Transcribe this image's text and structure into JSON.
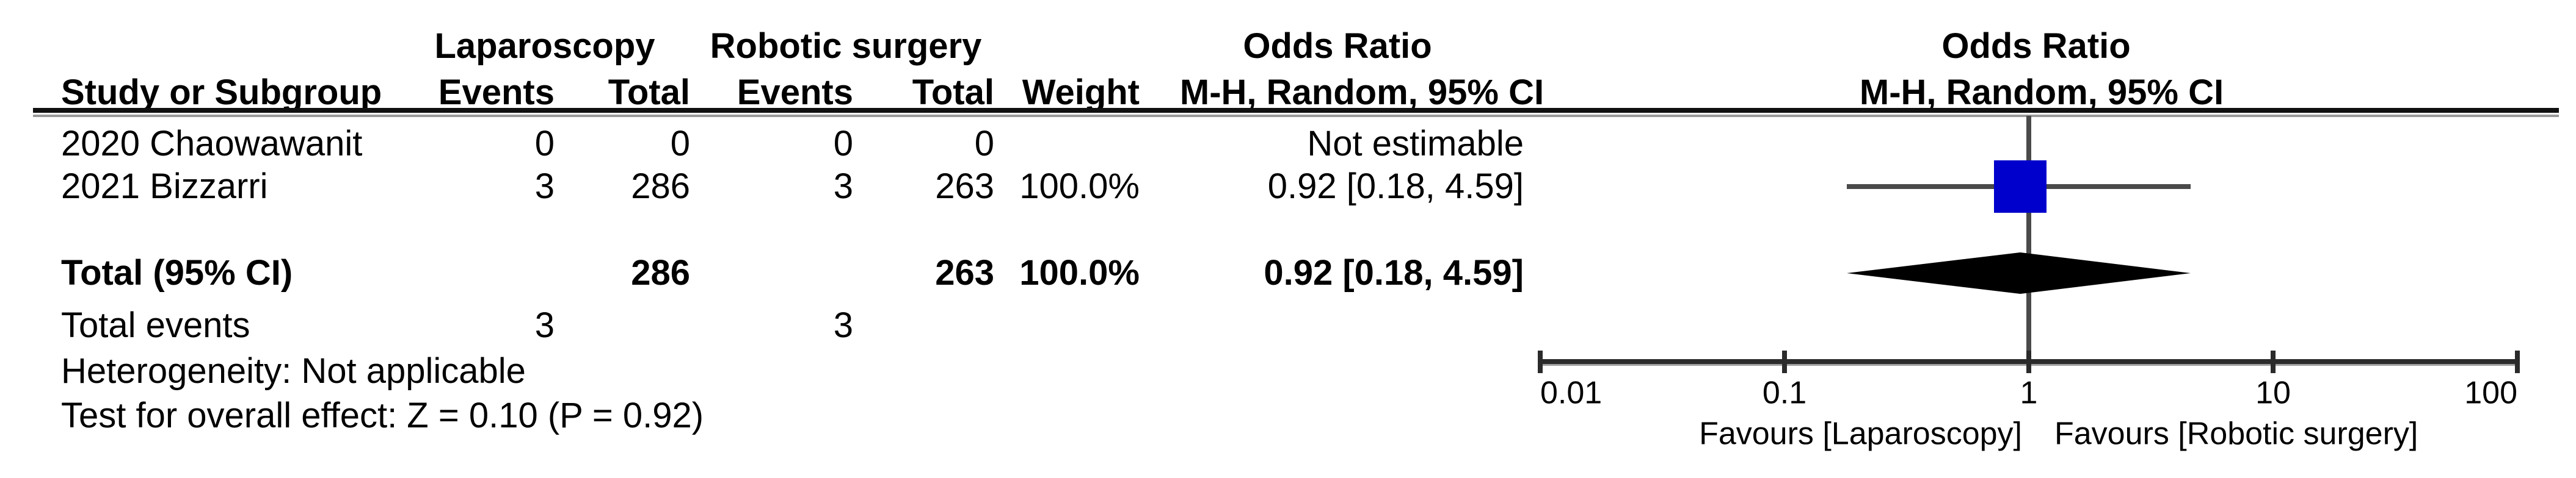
{
  "header": {
    "group1": "Laparoscopy",
    "group2": "Robotic surgery",
    "effect1": "Odds Ratio",
    "effect2": "M-H, Random, 95% CI",
    "study": "Study or Subgroup",
    "events": "Events",
    "total": "Total",
    "weight": "Weight"
  },
  "rows": [
    {
      "study": "2020 Chaowawanit",
      "lap_events": "0",
      "lap_total": "0",
      "rob_events": "0",
      "rob_total": "0",
      "weight": "",
      "or_ci": "Not estimable"
    },
    {
      "study": "2021 Bizzarri",
      "lap_events": "3",
      "lap_total": "286",
      "rob_events": "3",
      "rob_total": "263",
      "weight": "100.0%",
      "or_ci": "0.92 [0.18, 4.59]"
    }
  ],
  "total_row": {
    "label": "Total (95% CI)",
    "lap_total": "286",
    "rob_total": "263",
    "weight": "100.0%",
    "or_ci": "0.92 [0.18, 4.59]"
  },
  "total_events": {
    "label": "Total events",
    "lap": "3",
    "rob": "3"
  },
  "footnotes": {
    "heterogeneity": "Heterogeneity: Not applicable",
    "overall": "Test for overall effect: Z = 0.10 (P = 0.92)"
  },
  "axis": {
    "tick_labels": [
      "0.01",
      "0.1",
      "1",
      "10",
      "100"
    ],
    "favours_left": "Favours [Laparoscopy]",
    "favours_right": "Favours [Robotic surgery]"
  },
  "chart_data": {
    "type": "forest",
    "x_scale": "log10",
    "xlim": [
      0.01,
      100
    ],
    "x_ticks": [
      0.01,
      0.1,
      1,
      10,
      100
    ],
    "effect_label": "Odds Ratio M-H, Random, 95% CI",
    "comparison": {
      "group1": "Laparoscopy",
      "group2": "Robotic surgery"
    },
    "studies": [
      {
        "name": "2020 Chaowawanit",
        "estimable": false,
        "or": null,
        "ci_low": null,
        "ci_high": null,
        "weight_pct": null
      },
      {
        "name": "2021 Bizzarri",
        "estimable": true,
        "or": 0.92,
        "ci_low": 0.18,
        "ci_high": 4.59,
        "weight_pct": 100.0
      }
    ],
    "total": {
      "label": "Total (95% CI)",
      "or": 0.92,
      "ci_low": 0.18,
      "ci_high": 4.59
    },
    "colors": {
      "study_marker": "#0000CC",
      "diamond": "#000000",
      "line": "#4A4A4A"
    }
  }
}
